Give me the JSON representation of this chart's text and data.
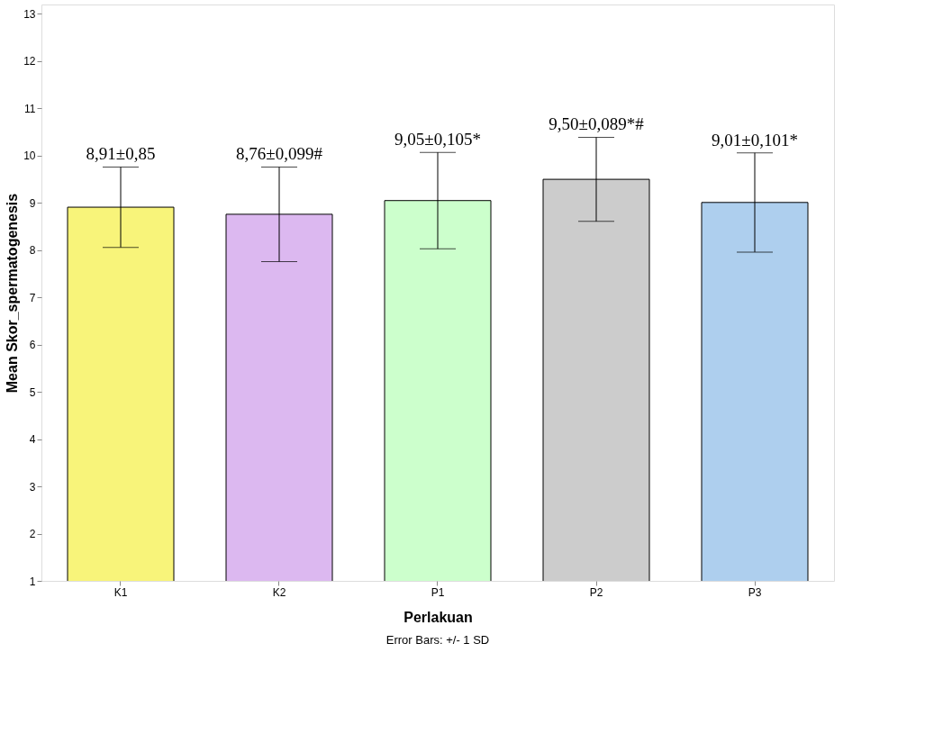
{
  "chart_data": {
    "type": "bar",
    "xlabel": "Perlakuan",
    "ylabel": "Mean Skor_spermatogenesis",
    "categories": [
      "K1",
      "K2",
      "P1",
      "P2",
      "P3"
    ],
    "values": [
      8.91,
      8.76,
      9.05,
      9.5,
      9.01
    ],
    "colors": [
      "#f8f47a",
      "#dcb8f0",
      "#ccffcc",
      "#cccccc",
      "#aecfee"
    ],
    "errors": [
      0.85,
      1.0,
      1.02,
      0.89,
      1.05
    ],
    "value_labels": [
      "8,91±0,85",
      "8,76±0,099#",
      "9,05±0,105*",
      "9,50±0,089*#",
      "9,01±0,101*"
    ],
    "ylim": [
      1,
      13.2
    ],
    "yticks": [
      1,
      2,
      3,
      4,
      5,
      6,
      7,
      8,
      9,
      10,
      11,
      12,
      13
    ],
    "grid": false,
    "annotations": [
      "Error Bars: +/- 1 SD"
    ]
  }
}
